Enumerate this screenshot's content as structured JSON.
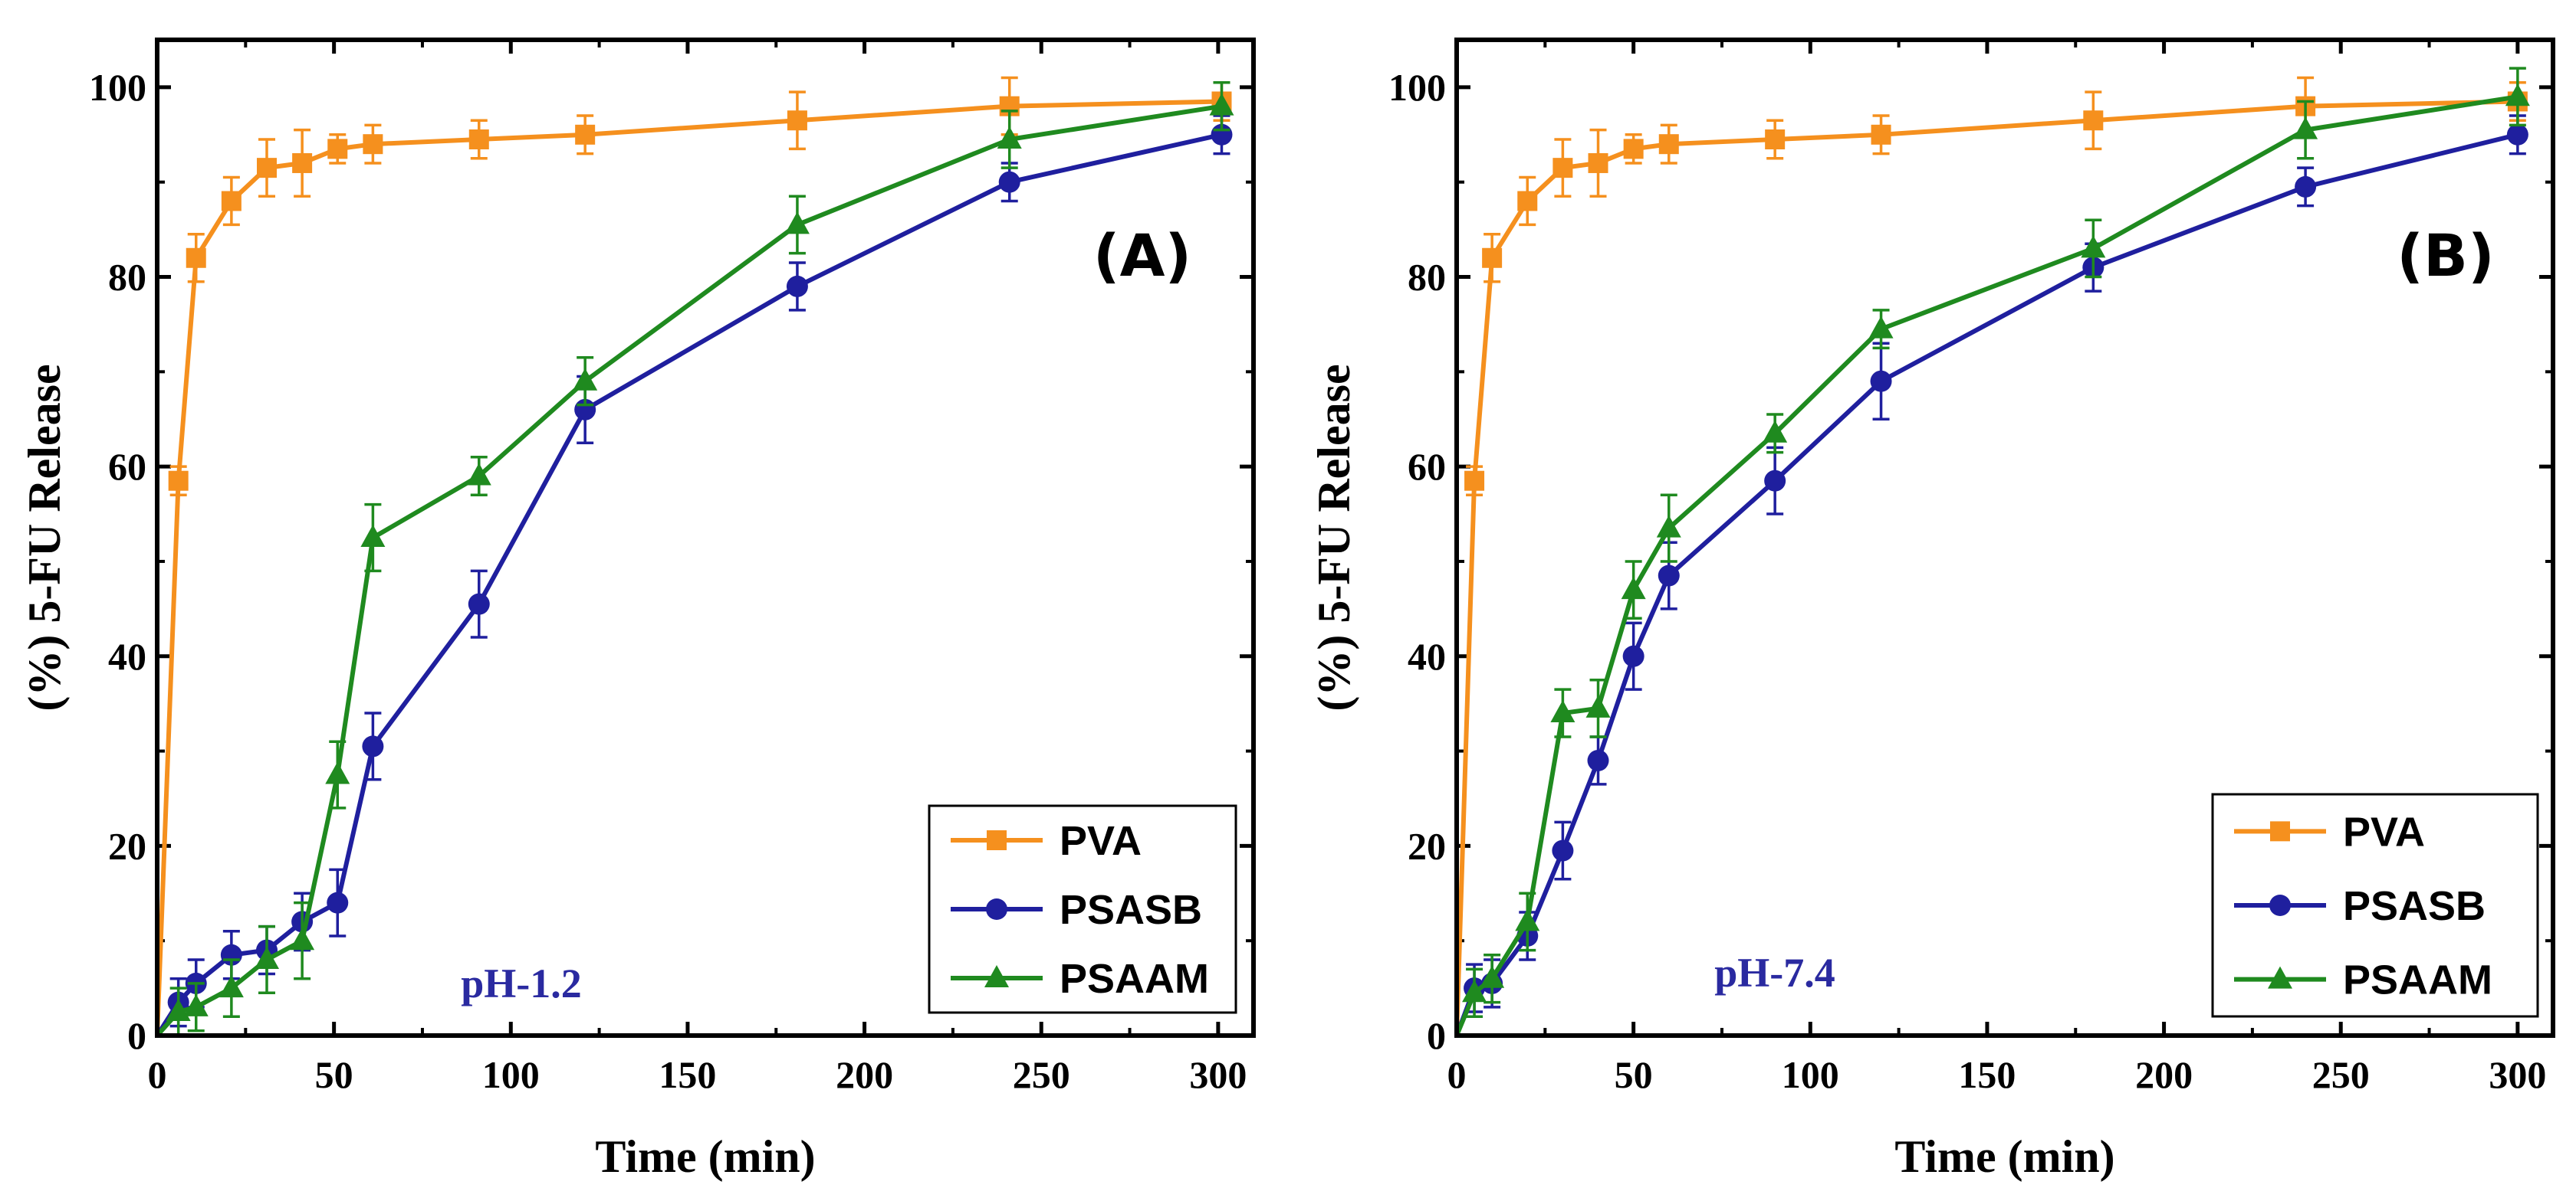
{
  "colors": {
    "PVA": "#f5901e",
    "PSASB": "#1f1f9e",
    "PSAAM": "#1f8a1f",
    "ph_label": "#2a2aa0"
  },
  "markers": {
    "PVA": "square",
    "PSASB": "circle",
    "PSAAM": "triangle"
  },
  "chart_data": [
    {
      "type": "line",
      "panel_label": "(A)",
      "ph_label": "pH-1.2",
      "xlabel": "Time (min)",
      "ylabel": "(%) 5-FU Release",
      "xlim": [
        0,
        310
      ],
      "ylim": [
        0,
        105
      ],
      "xticks": [
        0,
        50,
        100,
        150,
        200,
        250,
        300
      ],
      "yticks": [
        0,
        20,
        40,
        60,
        80,
        100
      ],
      "legend_position": "bottom-right",
      "series": [
        {
          "name": "PVA",
          "x": [
            0,
            6,
            11,
            21,
            31,
            41,
            51,
            61,
            91,
            121,
            181,
            241,
            301
          ],
          "y": [
            0,
            58.5,
            82,
            88,
            91.5,
            92,
            93.5,
            94,
            94.5,
            95,
            96.5,
            98,
            98.5
          ],
          "err": [
            0,
            1.5,
            2.5,
            2.5,
            3,
            3.5,
            1.5,
            2,
            2,
            2,
            3,
            3,
            2
          ]
        },
        {
          "name": "PSASB",
          "x": [
            0,
            6,
            11,
            21,
            31,
            41,
            51,
            61,
            91,
            121,
            181,
            241,
            301
          ],
          "y": [
            0,
            3.5,
            5.5,
            8.5,
            9,
            12,
            14,
            30.5,
            45.5,
            66,
            79,
            90,
            95
          ],
          "err": [
            0,
            2.5,
            2.5,
            2.5,
            2.5,
            3,
            3.5,
            3.5,
            3.5,
            3.5,
            2.5,
            2,
            2
          ]
        },
        {
          "name": "PSAAM",
          "x": [
            0,
            6,
            11,
            21,
            31,
            41,
            51,
            61,
            91,
            121,
            181,
            241,
            301
          ],
          "y": [
            0,
            2.5,
            3,
            5,
            8,
            10,
            27.5,
            52.5,
            59,
            69,
            85.5,
            94.5,
            98
          ],
          "err": [
            0,
            2.5,
            2.5,
            3,
            3.5,
            4,
            3.5,
            3.5,
            2,
            2.5,
            3,
            3,
            2.5
          ]
        }
      ]
    },
    {
      "type": "line",
      "panel_label": "(B)",
      "ph_label": "pH-7.4",
      "xlabel": "Time (min)",
      "ylabel": "(%) 5-FU Release",
      "xlim": [
        0,
        310
      ],
      "ylim": [
        0,
        105
      ],
      "xticks": [
        0,
        50,
        100,
        150,
        200,
        250,
        300
      ],
      "yticks": [
        0,
        20,
        40,
        60,
        80,
        100
      ],
      "legend_position": "bottom-right",
      "series": [
        {
          "name": "PVA",
          "x": [
            0,
            5,
            10,
            20,
            30,
            40,
            50,
            60,
            90,
            120,
            180,
            240,
            300
          ],
          "y": [
            0,
            58.5,
            82,
            88,
            91.5,
            92,
            93.5,
            94,
            94.5,
            95,
            96.5,
            98,
            98.5
          ],
          "err": [
            0,
            1.5,
            2.5,
            2.5,
            3,
            3.5,
            1.5,
            2,
            2,
            2,
            3,
            3,
            2
          ]
        },
        {
          "name": "PSASB",
          "x": [
            0,
            5,
            10,
            20,
            30,
            40,
            50,
            60,
            90,
            120,
            180,
            240,
            300
          ],
          "y": [
            0,
            5,
            5.5,
            10.5,
            19.5,
            29,
            40,
            48.5,
            58.5,
            69,
            81,
            89.5,
            95
          ],
          "err": [
            0,
            2.5,
            2.5,
            2.5,
            3,
            2.5,
            3.5,
            3.5,
            3.5,
            4,
            2.5,
            2,
            2
          ]
        },
        {
          "name": "PSAAM",
          "x": [
            0,
            5,
            10,
            20,
            30,
            40,
            50,
            60,
            90,
            120,
            180,
            240,
            300
          ],
          "y": [
            0,
            4.5,
            6,
            12,
            34,
            34.5,
            47,
            53.5,
            63.5,
            74.5,
            83,
            95.5,
            99
          ],
          "err": [
            0,
            2.5,
            2.5,
            3,
            2.5,
            3,
            3,
            3.5,
            2,
            2,
            3,
            3,
            3
          ]
        }
      ]
    }
  ]
}
